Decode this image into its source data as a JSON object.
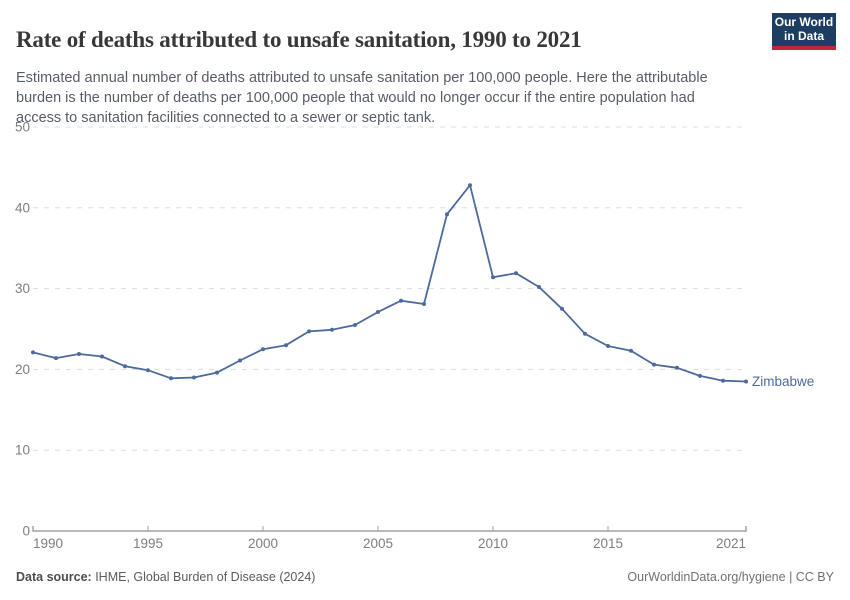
{
  "header": {
    "title": "Rate of deaths attributed to unsafe sanitation, 1990 to 2021",
    "subtitle": "Estimated annual number of deaths attributed to unsafe sanitation per 100,000 people. Here the attributable burden is the number of deaths per 100,000 people that would no longer occur if the entire population had access to sanitation facilities connected to a sewer or septic tank.",
    "logo": {
      "line1": "Our World",
      "line2": "in Data",
      "bg_color": "#1d3d63",
      "accent_color": "#c0273c"
    }
  },
  "chart_data": {
    "type": "line",
    "title": "Rate of deaths attributed to unsafe sanitation, 1990 to 2021",
    "x": [
      1990,
      1991,
      1992,
      1993,
      1994,
      1995,
      1996,
      1997,
      1998,
      1999,
      2000,
      2001,
      2002,
      2003,
      2004,
      2005,
      2006,
      2007,
      2008,
      2009,
      2010,
      2011,
      2012,
      2013,
      2014,
      2015,
      2016,
      2017,
      2018,
      2019,
      2020,
      2021
    ],
    "series": [
      {
        "name": "Zimbabwe",
        "color": "#4c6a9c",
        "values": [
          22.1,
          21.4,
          21.9,
          21.6,
          20.4,
          19.9,
          18.9,
          19.0,
          19.6,
          21.1,
          22.5,
          23.0,
          24.7,
          24.9,
          25.5,
          27.1,
          28.5,
          28.1,
          39.2,
          42.8,
          31.4,
          31.9,
          30.2,
          27.5,
          24.4,
          22.9,
          22.3,
          20.6,
          20.2,
          19.2,
          18.6,
          18.5
        ]
      }
    ],
    "xlabel": "",
    "ylabel": "",
    "xlim": [
      1990,
      2021
    ],
    "ylim": [
      0,
      50
    ],
    "xticks": [
      1990,
      1995,
      2000,
      2005,
      2010,
      2015,
      2021
    ],
    "yticks": [
      0,
      10,
      20,
      30,
      40,
      50
    ],
    "grid": "horizontal-dashed",
    "legend": "end-of-line-label",
    "grid_color": "#dddddd",
    "axis_color": "#a2a2a2",
    "tick_label_color": "#7e7e7e"
  },
  "footer": {
    "source_label": "Data source:",
    "source_text": " IHME, Global Burden of Disease (2024)",
    "credit": "OurWorldinData.org/hygiene | CC BY"
  }
}
